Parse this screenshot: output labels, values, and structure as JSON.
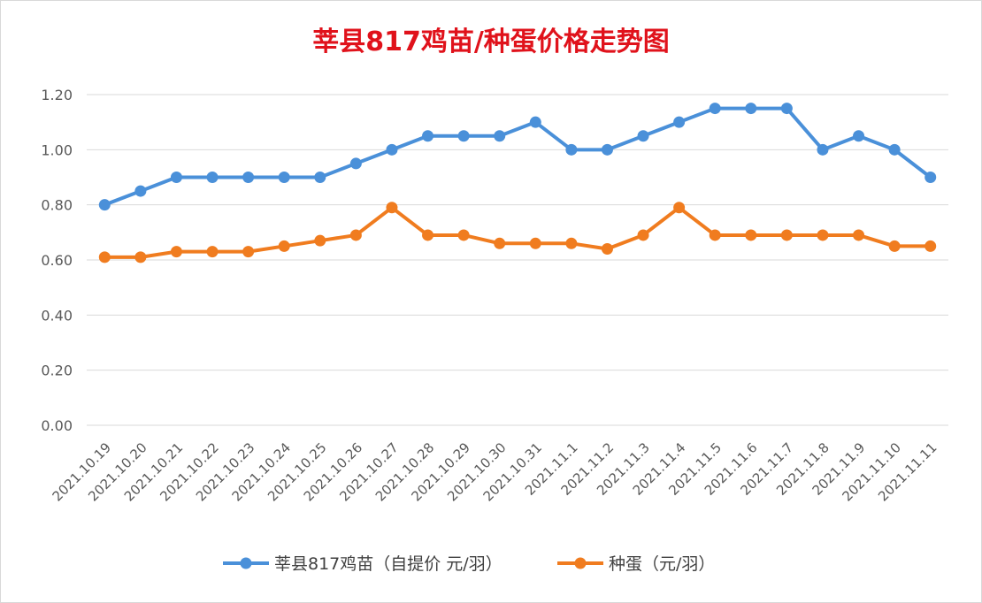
{
  "chart_data": {
    "type": "line",
    "title": "莘县817鸡苗/种蛋价格走势图",
    "xlabel": "",
    "ylabel": "",
    "ylim": [
      0,
      1.2
    ],
    "yticks": [
      "0.00",
      "0.20",
      "0.40",
      "0.60",
      "0.80",
      "1.00",
      "1.20"
    ],
    "grid": true,
    "legend": "bottom",
    "categories": [
      "2021.10.19",
      "2021.10.20",
      "2021.10.21",
      "2021.10.22",
      "2021.10.23",
      "2021.10.24",
      "2021.10.25",
      "2021.10.26",
      "2021.10.27",
      "2021.10.28",
      "2021.10.29",
      "2021.10.30",
      "2021.10.31",
      "2021.11.1",
      "2021.11.2",
      "2021.11.3",
      "2021.11.4",
      "2021.11.5",
      "2021.11.6",
      "2021.11.7",
      "2021.11.8",
      "2021.11.9",
      "2021.11.10",
      "2021.11.11"
    ],
    "series": [
      {
        "name": "莘县817鸡苗（自提价 元/羽）",
        "color": "#4a90d9",
        "values": [
          0.8,
          0.85,
          0.9,
          0.9,
          0.9,
          0.9,
          0.9,
          0.95,
          1.0,
          1.05,
          1.05,
          1.05,
          1.1,
          1.0,
          1.0,
          1.05,
          1.1,
          1.15,
          1.15,
          1.15,
          1.0,
          1.05,
          1.0,
          0.9
        ]
      },
      {
        "name": "种蛋（元/羽）",
        "color": "#f07c1f",
        "values": [
          0.61,
          0.61,
          0.63,
          0.63,
          0.63,
          0.65,
          0.67,
          0.69,
          0.79,
          0.69,
          0.69,
          0.66,
          0.66,
          0.66,
          0.64,
          0.69,
          0.79,
          0.69,
          0.69,
          0.69,
          0.69,
          0.69,
          0.65,
          0.65
        ]
      }
    ]
  }
}
